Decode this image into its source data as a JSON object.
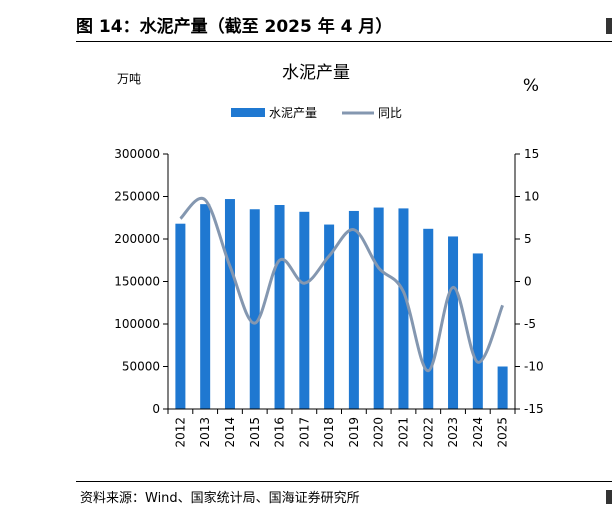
{
  "figure": {
    "title": "图 14：水泥产量（截至 2025 年 4 月）",
    "source": "资料来源：Wind、国家统计局、国海证券研究所"
  },
  "chart_data": {
    "type": "bar",
    "title": "水泥产量",
    "categories": [
      "2012",
      "2013",
      "2014",
      "2015",
      "2016",
      "2017",
      "2018",
      "2019",
      "2020",
      "2021",
      "2022",
      "2023",
      "2024",
      "2025"
    ],
    "series": [
      {
        "name": "水泥产量",
        "type": "bar",
        "axis": "left",
        "color": "#1f78d1",
        "values": [
          218000,
          241000,
          247000,
          235000,
          240000,
          232000,
          217000,
          233000,
          237000,
          236000,
          212000,
          203000,
          183000,
          50000
        ]
      },
      {
        "name": "同比",
        "type": "line",
        "axis": "right",
        "color": "#8497b0",
        "values": [
          7.4,
          9.6,
          1.8,
          -4.9,
          2.5,
          -0.2,
          3.0,
          6.1,
          1.6,
          -1.2,
          -10.5,
          -0.7,
          -9.5,
          -2.8
        ]
      }
    ],
    "y_left": {
      "unit": "万吨",
      "ylim": [
        0,
        300000
      ],
      "ticks": [
        0,
        50000,
        100000,
        150000,
        200000,
        250000,
        300000
      ]
    },
    "y_right": {
      "unit": "%",
      "ylim": [
        -15,
        15
      ],
      "ticks": [
        -15,
        -10,
        -5,
        0,
        5,
        10,
        15
      ]
    },
    "legend": {
      "placement": "top-center"
    },
    "grid": false
  }
}
